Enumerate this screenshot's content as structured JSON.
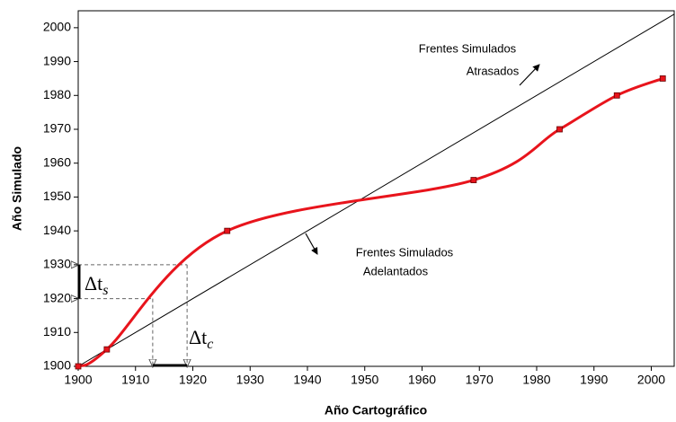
{
  "chart_data": {
    "type": "line",
    "x_label": "Año Cartográfico",
    "y_label": "Año Simulado",
    "xlim": [
      1900,
      2004
    ],
    "ylim": [
      1900,
      2005
    ],
    "xticks": [
      1900,
      1910,
      1920,
      1930,
      1940,
      1950,
      1960,
      1970,
      1980,
      1990,
      2000
    ],
    "yticks": [
      1900,
      1910,
      1920,
      1930,
      1940,
      1950,
      1960,
      1970,
      1980,
      1990,
      2000
    ],
    "series": [
      {
        "color": "#e8141c",
        "x": [
          1900,
          1905,
          1926,
          1969,
          1984,
          1994,
          2002
        ],
        "values": [
          1900,
          1905,
          1940,
          1955,
          1970,
          1980,
          1985
        ]
      },
      {
        "color": "#000000",
        "x": [
          1900,
          2004
        ],
        "values": [
          1900,
          2004
        ]
      }
    ],
    "guides": {
      "x": [
        1913,
        1919
      ],
      "y": [
        1920,
        1930
      ]
    },
    "annotations": {
      "late": [
        "Frentes Simulados",
        "Atrasados"
      ],
      "early": [
        "Frentes Simulados",
        "Adelantados"
      ],
      "delta_s": [
        "Δt",
        "s"
      ],
      "delta_c": [
        "Δt",
        "c"
      ]
    }
  }
}
